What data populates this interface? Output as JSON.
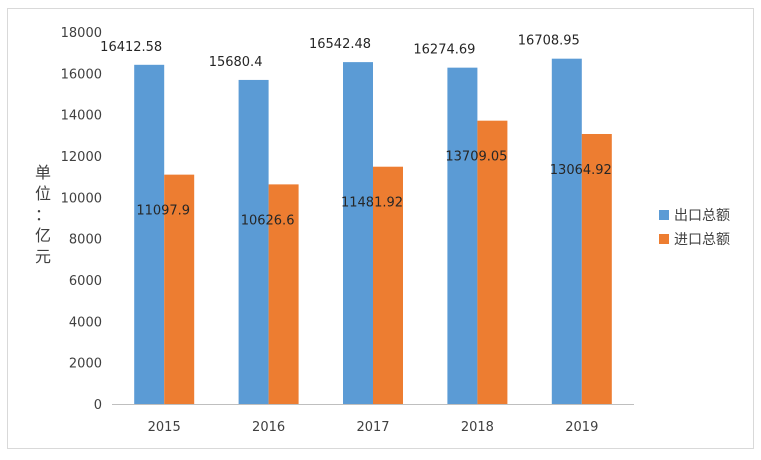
{
  "chart_data": {
    "type": "bar",
    "title": "",
    "xlabel": "",
    "ylabel": "单位：亿元",
    "categories": [
      "2015",
      "2016",
      "2017",
      "2018",
      "2019"
    ],
    "series": [
      {
        "name": "出口总额",
        "values": [
          16412.58,
          15680.4,
          16542.48,
          16274.69,
          16708.95
        ],
        "labels": [
          "16412.58",
          "15680.4",
          "16542.48",
          "16274.69",
          "16708.95"
        ],
        "color": "#5b9bd5"
      },
      {
        "name": "进口总额",
        "values": [
          11097.9,
          10626.6,
          11481.92,
          13709.05,
          13064.92
        ],
        "labels": [
          "11097.9",
          "10626.6",
          "11481.92",
          "13709.05",
          "13064.92"
        ],
        "color": "#ed7d31"
      }
    ],
    "ylim": [
      0,
      18000
    ],
    "yticks": [
      0,
      2000,
      4000,
      6000,
      8000,
      10000,
      12000,
      14000,
      16000,
      18000
    ],
    "grid": false,
    "legend": "right"
  }
}
